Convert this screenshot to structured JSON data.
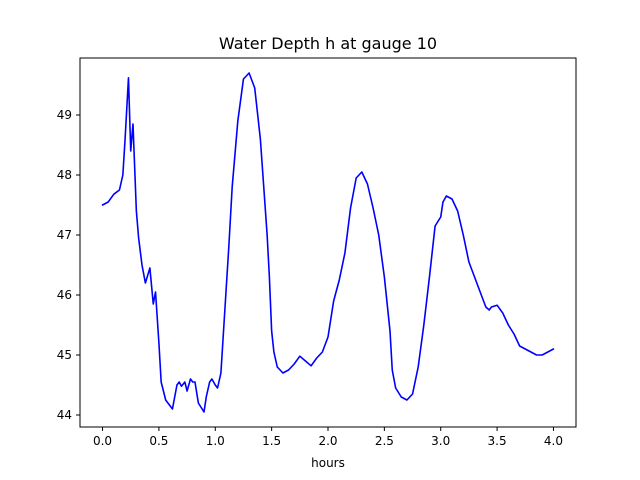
{
  "chart_data": {
    "type": "line",
    "title": "Water Depth h at gauge 10",
    "xlabel": "hours",
    "ylabel": "",
    "xlim": [
      -0.2,
      4.2
    ],
    "ylim": [
      43.8,
      49.95
    ],
    "xticks": [
      0.0,
      0.5,
      1.0,
      1.5,
      2.0,
      2.5,
      3.0,
      3.5,
      4.0
    ],
    "xtick_labels": [
      "0.0",
      "0.5",
      "1.0",
      "1.5",
      "2.0",
      "2.5",
      "3.0",
      "3.5",
      "4.0"
    ],
    "yticks": [
      44,
      45,
      46,
      47,
      48,
      49
    ],
    "ytick_labels": [
      "44",
      "45",
      "46",
      "47",
      "48",
      "49"
    ],
    "grid": false,
    "series": [
      {
        "color": "#0000ff",
        "x": [
          0.0,
          0.05,
          0.1,
          0.15,
          0.18,
          0.2,
          0.23,
          0.25,
          0.27,
          0.3,
          0.32,
          0.35,
          0.38,
          0.42,
          0.45,
          0.47,
          0.5,
          0.52,
          0.54,
          0.56,
          0.58,
          0.62,
          0.66,
          0.68,
          0.7,
          0.73,
          0.75,
          0.78,
          0.8,
          0.82,
          0.85,
          0.9,
          0.92,
          0.95,
          0.97,
          1.0,
          1.02,
          1.05,
          1.08,
          1.12,
          1.15,
          1.2,
          1.25,
          1.3,
          1.35,
          1.4,
          1.43,
          1.46,
          1.48,
          1.5,
          1.52,
          1.55,
          1.6,
          1.65,
          1.7,
          1.75,
          1.8,
          1.85,
          1.9,
          1.95,
          2.0,
          2.05,
          2.1,
          2.15,
          2.2,
          2.25,
          2.3,
          2.35,
          2.4,
          2.45,
          2.5,
          2.55,
          2.57,
          2.6,
          2.65,
          2.7,
          2.75,
          2.8,
          2.85,
          2.9,
          2.95,
          3.0,
          3.02,
          3.05,
          3.1,
          3.15,
          3.2,
          3.25,
          3.3,
          3.35,
          3.38,
          3.4,
          3.43,
          3.45,
          3.5,
          3.55,
          3.6,
          3.65,
          3.7,
          3.75,
          3.8,
          3.85,
          3.9,
          3.95,
          4.0
        ],
        "y": [
          47.5,
          47.55,
          47.68,
          47.75,
          48.0,
          48.6,
          49.62,
          48.4,
          48.85,
          47.4,
          46.95,
          46.5,
          46.2,
          46.45,
          45.85,
          46.05,
          45.2,
          44.55,
          44.4,
          44.25,
          44.2,
          44.1,
          44.5,
          44.55,
          44.48,
          44.55,
          44.4,
          44.6,
          44.55,
          44.55,
          44.2,
          44.05,
          44.3,
          44.55,
          44.6,
          44.5,
          44.45,
          44.7,
          45.6,
          46.8,
          47.8,
          48.9,
          49.6,
          49.7,
          49.45,
          48.6,
          47.8,
          47.0,
          46.3,
          45.4,
          45.05,
          44.8,
          44.7,
          44.75,
          44.85,
          44.98,
          44.9,
          44.82,
          44.95,
          45.05,
          45.3,
          45.9,
          46.25,
          46.7,
          47.45,
          47.95,
          48.05,
          47.85,
          47.45,
          47.0,
          46.3,
          45.4,
          44.75,
          44.45,
          44.3,
          44.25,
          44.35,
          44.8,
          45.5,
          46.3,
          47.15,
          47.3,
          47.55,
          47.65,
          47.6,
          47.4,
          47.0,
          46.55,
          46.3,
          46.05,
          45.9,
          45.8,
          45.75,
          45.8,
          45.83,
          45.7,
          45.5,
          45.35,
          45.15,
          45.1,
          45.05,
          45.0,
          45.0,
          45.05,
          45.1
        ]
      }
    ]
  }
}
